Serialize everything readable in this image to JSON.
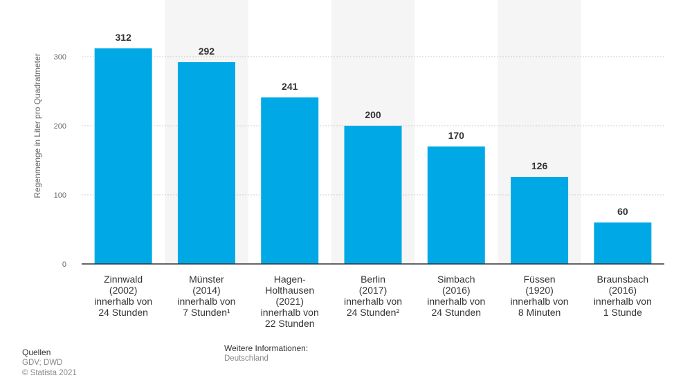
{
  "chart_data": {
    "type": "bar",
    "categories": [
      [
        "Zinnwald",
        "(2002)",
        "innerhalb von",
        "24 Stunden"
      ],
      [
        "Münster",
        "(2014)",
        "innerhalb von",
        "7 Stunden¹"
      ],
      [
        "Hagen-",
        "Holthausen",
        "(2021)",
        "innerhalb von",
        "22 Stunden"
      ],
      [
        "Berlin",
        "(2017)",
        "innerhalb von",
        "24 Stunden²"
      ],
      [
        "Simbach",
        "(2016)",
        "innerhalb von",
        "24 Stunden"
      ],
      [
        "Füssen",
        "(1920)",
        "innerhalb von",
        "8 Minuten"
      ],
      [
        "Braunsbach",
        "(2016)",
        "innerhalb von",
        "1 Stunde"
      ]
    ],
    "values": [
      312,
      292,
      241,
      200,
      170,
      126,
      60
    ],
    "ylabel": "Regenmenge in Liter pro Quadratmeter",
    "ylim": [
      0,
      340
    ],
    "yticks": [
      0,
      100,
      200,
      300
    ],
    "grid": true,
    "colors": {
      "bar": "#00a9e6",
      "band": "#f5f5f5",
      "grid": "#cccccc",
      "axis": "#333333"
    }
  },
  "footer": {
    "sources_title": "Quellen",
    "sources_text": "GDV; DWD",
    "copyright": "© Statista 2021",
    "more_title": "Weitere Informationen:",
    "more_text": "Deutschland"
  }
}
